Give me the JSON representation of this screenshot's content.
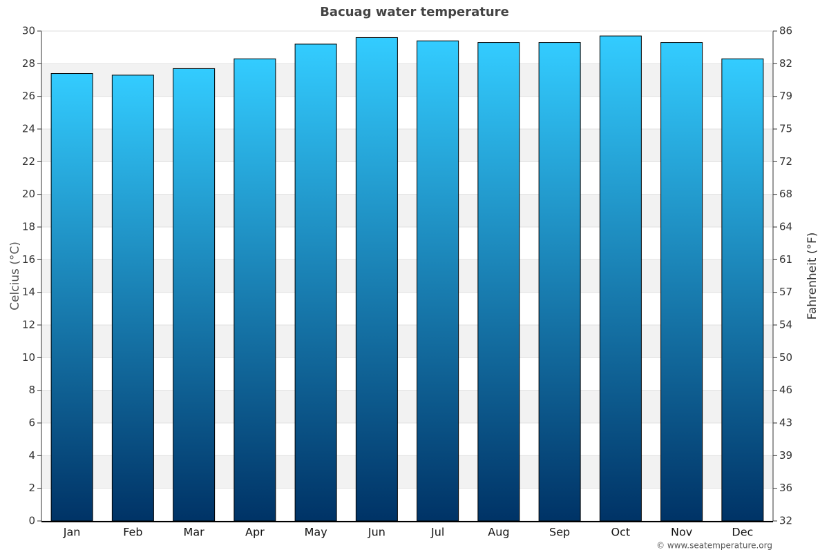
{
  "chart_data": {
    "type": "bar",
    "title": "Bacuag water temperature",
    "categories": [
      "Jan",
      "Feb",
      "Mar",
      "Apr",
      "May",
      "Jun",
      "Jul",
      "Aug",
      "Sep",
      "Oct",
      "Nov",
      "Dec"
    ],
    "values": [
      27.4,
      27.3,
      27.7,
      28.3,
      29.2,
      29.6,
      29.4,
      29.3,
      29.3,
      29.7,
      29.3,
      28.3
    ],
    "color": [
      "#33ccff",
      "#003366"
    ],
    "ylabel": "Celcius (°C)",
    "y2label": "Fahrenheit (°F)",
    "ylim": [
      0,
      30
    ],
    "yticks": [
      0,
      2,
      4,
      6,
      8,
      10,
      12,
      14,
      16,
      18,
      20,
      22,
      24,
      26,
      28,
      30
    ],
    "y2lim": [
      32,
      86
    ],
    "y2ticks": [
      32,
      {
        "value": 35.6,
        "label": "36"
      },
      {
        "value": 39.2,
        "label": "39"
      },
      {
        "value": 42.8,
        "label": "43"
      },
      {
        "value": 46.4,
        "label": "46"
      },
      50,
      {
        "value": 53.6,
        "label": "54"
      },
      {
        "value": 57.2,
        "label": "57"
      },
      {
        "value": 60.8,
        "label": "61"
      },
      {
        "value": 64.4,
        "label": "64"
      },
      68,
      {
        "value": 71.6,
        "label": "72"
      },
      {
        "value": 75.2,
        "label": "75"
      },
      {
        "value": 78.8,
        "label": "79"
      },
      {
        "value": 82.4,
        "label": "82"
      },
      86
    ],
    "grid": true,
    "credit": "© www.seatemperature.org"
  }
}
